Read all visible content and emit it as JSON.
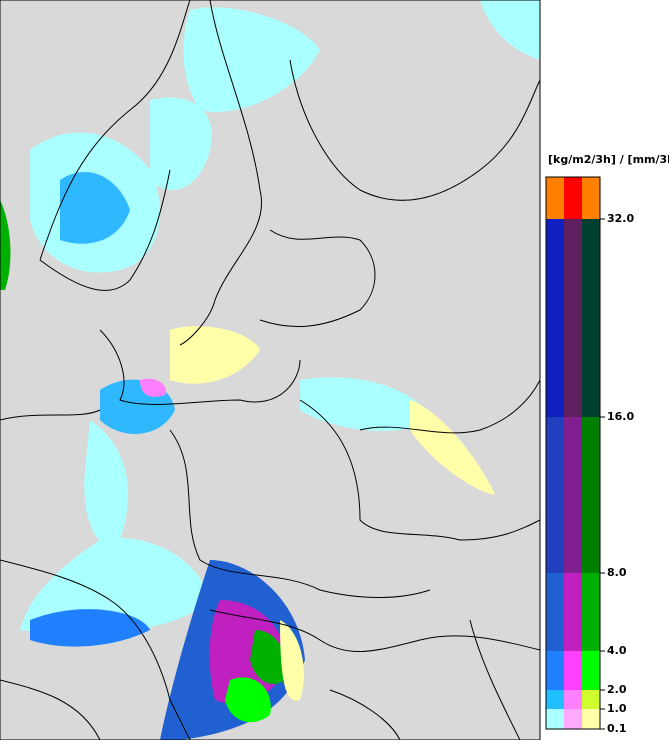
{
  "legend": {
    "title": "[kg/m2/3h] / [mm/3h]",
    "ticks": [
      {
        "value": 0.1,
        "label": "0.1"
      },
      {
        "value": 1,
        "label": "1.0"
      },
      {
        "value": 2,
        "label": "2.0"
      },
      {
        "value": 4,
        "label": "4.0"
      },
      {
        "value": 8,
        "label": "8.0"
      },
      {
        "value": 16,
        "label": "16.0"
      },
      {
        "value": 32,
        "label": "32.0"
      }
    ]
  }
}
